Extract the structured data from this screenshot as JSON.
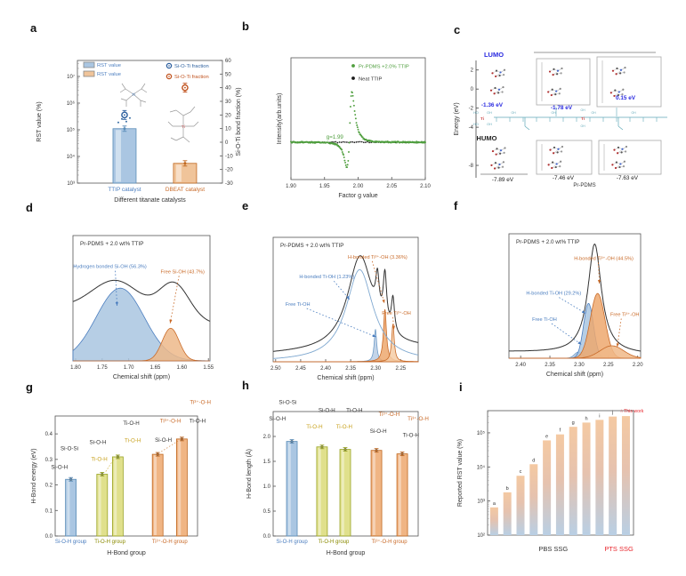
{
  "chart_data": [
    {
      "panel": "a",
      "type": "bar",
      "xlabel": "Different titanate catalysts",
      "ylabel": "RST value (%)",
      "ylabel_right": "Si-O-Ti bond fraction (%)",
      "yscale": "log",
      "ylim": [
        1000,
        40000000
      ],
      "yticks": [
        "10³",
        "10⁴",
        "10⁵",
        "10⁶",
        "10⁷"
      ],
      "yticks_right": [
        60,
        50,
        40,
        30,
        20,
        10,
        0,
        -10,
        -20,
        -30
      ],
      "legend": [
        {
          "label": "RST value",
          "swatch": "#aac6e2"
        },
        {
          "label": "RST value",
          "swatch": "#f0c49a"
        },
        {
          "label": "Si-O-Ti fraction",
          "marker": "#2c5f9e"
        },
        {
          "label": "Si-O-Ti fraction",
          "marker": "#c0511c"
        }
      ],
      "bars": [
        {
          "category": "TTIP catalyst",
          "value": 110000,
          "fill": "#aac6e2",
          "stroke": "#5b8db8",
          "label_color": "#4a7dbf"
        },
        {
          "category": "DBEAT catalyst",
          "value": 5500,
          "fill": "#f0c49a",
          "stroke": "#c06820",
          "label_color": "#c96a28"
        }
      ],
      "points_right": [
        {
          "name": "Si-O-Ti fraction",
          "category": "TTIP catalyst",
          "value": 20,
          "color": "#2c5f9e"
        },
        {
          "name": "Si-O-Ti fraction",
          "category": "DBEAT catalyst",
          "value": 40,
          "color": "#c0511c"
        }
      ],
      "molecules": [
        "TTIP molecular structure",
        "DBEAT molecular structure"
      ]
    },
    {
      "panel": "b",
      "type": "scatter",
      "xlabel": "Factor g value",
      "ylabel": "Intensity(arb.units)",
      "xlim": [
        1.9,
        2.1
      ],
      "xticks": [
        "1.90",
        "1.95",
        "2.00",
        "2.05",
        "2.10"
      ],
      "annotation": {
        "text": "g=1.99",
        "color": "#4f9e3e"
      },
      "series": [
        {
          "name": "Pr-PDMS +2.0% TTIP",
          "color": "#4f9e3e",
          "shape": "epr-derivative",
          "g_center": 1.99
        },
        {
          "name": "Neat TTIP",
          "color": "#1a1a1a",
          "shape": "flat"
        }
      ]
    },
    {
      "panel": "c",
      "type": "energy-diagram",
      "ylabel": "Energy (eV)",
      "yticks": [
        2,
        0,
        -2,
        -4,
        -8
      ],
      "lumo_label": "LUMO",
      "homo_label": "HUMO",
      "lumo_values": [
        "-1.36 eV",
        "-1.78 eV",
        "0.15 eV"
      ],
      "homo_values": [
        "-7.89 eV",
        "-7.46 eV",
        "-7.63 eV"
      ],
      "x_label": "Pr-PDMS",
      "lumo_color": "#2a2ae0",
      "structure": "Pr-PDMS chain with Ti(OH)4 crosslinks"
    },
    {
      "panel": "d",
      "type": "nmr",
      "title": "Pr-PDMS + 2.0 wt% TTIP",
      "xlabel": "Chemical shift (ppm)",
      "xlim": [
        1.805,
        1.547
      ],
      "xticks": [
        "1.80",
        "1.75",
        "1.70",
        "1.65",
        "1.60",
        "1.55"
      ],
      "fill_peaks": [
        {
          "label": "Hydrogen bonded Si-OH (56.3%)",
          "center": 1.716,
          "width": 0.045,
          "height": 0.58,
          "shape": "gauss",
          "fill": "#a9c6e0",
          "stroke": "#4a7dbf"
        },
        {
          "label": "Free Si-OH (43.7%)",
          "center": 1.621,
          "width": 0.016,
          "height": 0.26,
          "shape": "gauss",
          "fill": "#edb98a",
          "stroke": "#c96a28"
        }
      ],
      "trace": {
        "color": "#333333",
        "base_left": 0.42,
        "base_right": 0.3,
        "humps": [
          {
            "center": 1.723,
            "width": 0.046,
            "height": 0.26,
            "shape": "gauss"
          },
          {
            "center": 1.614,
            "width": 0.028,
            "height": 0.28,
            "shape": "gauss"
          }
        ]
      },
      "annotations": [
        {
          "text": "Hydrogen bonded Si-OH (56.3%)",
          "color": "#4a7dbf"
        },
        {
          "text": "Free Si-OH (43.7%)",
          "color": "#c96a28"
        }
      ]
    },
    {
      "panel": "e",
      "type": "nmr",
      "title": "Pr-PDMS + 2.0 wt% TTIP",
      "xlabel": "Chemical shift (ppm)",
      "xlim": [
        2.505,
        2.215
      ],
      "xticks": [
        "2.50",
        "2.45",
        "2.40",
        "2.35",
        "2.30",
        "2.25"
      ],
      "line_peaks": [
        {
          "center": 2.332,
          "width": 0.033,
          "height": 0.74,
          "shape": "lorentz",
          "stroke": "#7fa8d0"
        }
      ],
      "fill_peaks": [
        {
          "label": "Free Ti-OH",
          "center": 2.3005,
          "width": 0.003,
          "height": 0.26,
          "shape": "lorentz",
          "fill": "#b8cce4",
          "stroke": "#6f9cc8"
        },
        {
          "label": "H-bonded Ti³⁺-OH",
          "center": 2.2815,
          "width": 0.0036,
          "height": 0.42,
          "shape": "lorentz",
          "fill": "#eda86e",
          "stroke": "#c96a28"
        },
        {
          "label": "Free Ti³⁺-OH",
          "center": 2.2655,
          "width": 0.0032,
          "height": 0.3,
          "shape": "lorentz",
          "fill": "#f5cda6",
          "stroke": "#c96a28"
        }
      ],
      "trace": {
        "color": "#333333",
        "base_left": 0.06,
        "base_right": 0.1,
        "humps": [
          {
            "center": 2.331,
            "width": 0.031,
            "height": 0.76,
            "shape": "lorentz"
          },
          {
            "center": 2.2965,
            "width": 0.0042,
            "height": 0.29,
            "shape": "lorentz"
          },
          {
            "center": 2.2815,
            "width": 0.0042,
            "height": 0.4,
            "shape": "lorentz"
          },
          {
            "center": 2.2655,
            "width": 0.0038,
            "height": 0.27,
            "shape": "lorentz"
          }
        ]
      },
      "annotations": [
        {
          "text": "H-bonded Ti-OH (1.23%)",
          "color": "#4a7dbf"
        },
        {
          "text": "H-bonded Ti³⁺-OH (3.36%)",
          "color": "#c96a28"
        },
        {
          "text": "Free Ti-OH",
          "color": "#4a7dbf"
        },
        {
          "text": "Free Ti³⁺-OH",
          "color": "#c96a28"
        }
      ]
    },
    {
      "panel": "f",
      "type": "nmr",
      "title": "Pr-PDMS + 2.0 wt% TTIP",
      "xlabel": "Chemical shift (ppm)",
      "xlim": [
        2.42,
        2.195
      ],
      "xticks": [
        "2.40",
        "2.35",
        "2.30",
        "2.25",
        "2.20"
      ],
      "line_peaks": [],
      "fill_peaks": [
        {
          "label": "Free Ti-OH",
          "center": 2.301,
          "width": 0.007,
          "height": 0.05,
          "shape": "gauss",
          "fill": "#b8cce4",
          "stroke": "#6f9cc8"
        },
        {
          "label": "H-bonded Ti-OH",
          "center": 2.284,
          "width": 0.0085,
          "height": 0.44,
          "shape": "gauss",
          "fill": "#a9c6e0",
          "stroke": "#4a7dbf"
        },
        {
          "label": "H-bonded Ti³⁺-OH",
          "center": 2.2685,
          "width": 0.0125,
          "height": 0.52,
          "shape": "gauss",
          "fill": "#eda86e",
          "stroke": "#c96a28"
        },
        {
          "label": "Free Ti³⁺-OH",
          "center": 2.244,
          "width": 0.02,
          "height": 0.1,
          "shape": "gauss",
          "fill": "#f0b888",
          "stroke": "#c96a28"
        }
      ],
      "trace": {
        "color": "#333333",
        "base_left": 0.05,
        "base_right": 0.03,
        "humps": [
          {
            "center": 2.2735,
            "width": 0.014,
            "height": 0.88,
            "shape": "lorentz"
          }
        ]
      },
      "annotations": [
        {
          "text": "H-bonded Ti-OH (29.2%)",
          "color": "#4a7dbf"
        },
        {
          "text": "H-bonded Ti³⁺-OH (44.5%)",
          "color": "#c96a28"
        },
        {
          "text": "Free Ti-OH",
          "color": "#4a7dbf"
        },
        {
          "text": "Free Ti³⁺-OH",
          "color": "#c96a28"
        }
      ]
    },
    {
      "panel": "g",
      "type": "bar",
      "ylabel": "H-Bond energy (eV)",
      "xlabel": "H-Bond group",
      "ylim": [
        0,
        0.47
      ],
      "yticks": [
        "0.0",
        "0.1",
        "0.2",
        "0.3",
        "0.4"
      ],
      "groups": [
        {
          "label": "Si-O-H group",
          "color": "#4a7dbf"
        },
        {
          "label": "Ti-O-H group",
          "color": "#8a8a00"
        },
        {
          "label": "Ti³⁺-O-H group",
          "color": "#c96a28"
        }
      ],
      "bars": [
        {
          "value": 0.222,
          "fill": "#aac6e2",
          "stroke": "#5b8db8"
        },
        {
          "value": 0.242,
          "fill": "#e0e08c",
          "stroke": "#9aa426"
        },
        {
          "value": 0.31,
          "fill": "#e0e08c",
          "stroke": "#9aa426"
        },
        {
          "value": 0.32,
          "fill": "#f0b584",
          "stroke": "#c06820"
        },
        {
          "value": 0.38,
          "fill": "#f0b584",
          "stroke": "#c06820"
        }
      ],
      "pair_labels": [
        {
          "text": "Si-O-H",
          "color": "#333333"
        },
        {
          "text": "Si-O-Si",
          "color": "#333333"
        },
        {
          "text": "Si-O-H",
          "color": "#333333"
        },
        {
          "text": "Ti-O-H",
          "color": "#c8a21e"
        },
        {
          "text": "Ti-O-H",
          "color": "#c8a21e"
        },
        {
          "text": "Ti-O-H",
          "color": "#333333"
        },
        {
          "text": "Si-O-H",
          "color": "#333333"
        },
        {
          "text": "Ti³⁺-O-H",
          "color": "#c96a28"
        },
        {
          "text": "Ti-O-H",
          "color": "#333333"
        },
        {
          "text": "Ti³⁺-O-H",
          "color": "#c96a28"
        }
      ]
    },
    {
      "panel": "h",
      "type": "bar",
      "ylabel": "H-Bond length (Å)",
      "xlabel": "H-Bond group",
      "ylim": [
        0,
        2.5
      ],
      "yticks": [
        "0.0",
        "0.5",
        "1.0",
        "1.5",
        "2.0"
      ],
      "groups": [
        {
          "label": "Si-O-H group",
          "color": "#4a7dbf"
        },
        {
          "label": "Ti-O-H group",
          "color": "#8a8a00"
        },
        {
          "label": "Ti³⁺-O-H group",
          "color": "#c96a28"
        }
      ],
      "bars": [
        {
          "value": 1.9,
          "fill": "#aac6e2",
          "stroke": "#5b8db8"
        },
        {
          "value": 1.79,
          "fill": "#e0e08c",
          "stroke": "#9aa426"
        },
        {
          "value": 1.74,
          "fill": "#e0e08c",
          "stroke": "#9aa426"
        },
        {
          "value": 1.72,
          "fill": "#f0b584",
          "stroke": "#c06820"
        },
        {
          "value": 1.65,
          "fill": "#f0b584",
          "stroke": "#c06820"
        }
      ],
      "pair_labels": [
        {
          "text": "Si-O-Si",
          "color": "#333333"
        },
        {
          "text": "Si-O-H",
          "color": "#333333"
        },
        {
          "text": "Si-O-H",
          "color": "#333333"
        },
        {
          "text": "Ti-O-H",
          "color": "#333333"
        },
        {
          "text": "Ti³⁺-O-H",
          "color": "#c96a28"
        },
        {
          "text": "Ti³⁺-O-H",
          "color": "#c96a28"
        },
        {
          "text": "Ti-O-H",
          "color": "#c8a21e"
        },
        {
          "text": "Ti-O-H",
          "color": "#c8a21e"
        },
        {
          "text": "Si-O-H",
          "color": "#333333"
        },
        {
          "text": "Ti-O-H",
          "color": "#333333"
        }
      ]
    },
    {
      "panel": "i",
      "type": "bar",
      "yscale": "log",
      "ylabel": "Reported RST value (%)",
      "ylim": [
        100,
        560000
      ],
      "yticks": [
        "10²",
        "10³",
        "10⁴",
        "10⁵"
      ],
      "bars": [
        {
          "label": "a",
          "value": 650
        },
        {
          "label": "b",
          "value": 1800
        },
        {
          "label": "c",
          "value": 5500
        },
        {
          "label": "d",
          "value": 12000
        },
        {
          "label": "e",
          "value": 60000
        },
        {
          "label": "f",
          "value": 90000
        },
        {
          "label": "g",
          "value": 150000
        },
        {
          "label": "h",
          "value": 200000
        },
        {
          "label": "i",
          "value": 240000
        },
        {
          "label": "j",
          "value": 300000
        },
        {
          "label": "This work",
          "value": 310000,
          "highlight": true,
          "star": "☆",
          "highlight_color": "#e8262d"
        }
      ],
      "x_labels": [
        {
          "text": "PBS  SSG",
          "color": "#333333"
        },
        {
          "text": "PTS SSG",
          "color": "#e8262d"
        }
      ],
      "bar_gradient": {
        "bottom": "#b9cfe4",
        "top": "#f4c9a2"
      }
    }
  ]
}
